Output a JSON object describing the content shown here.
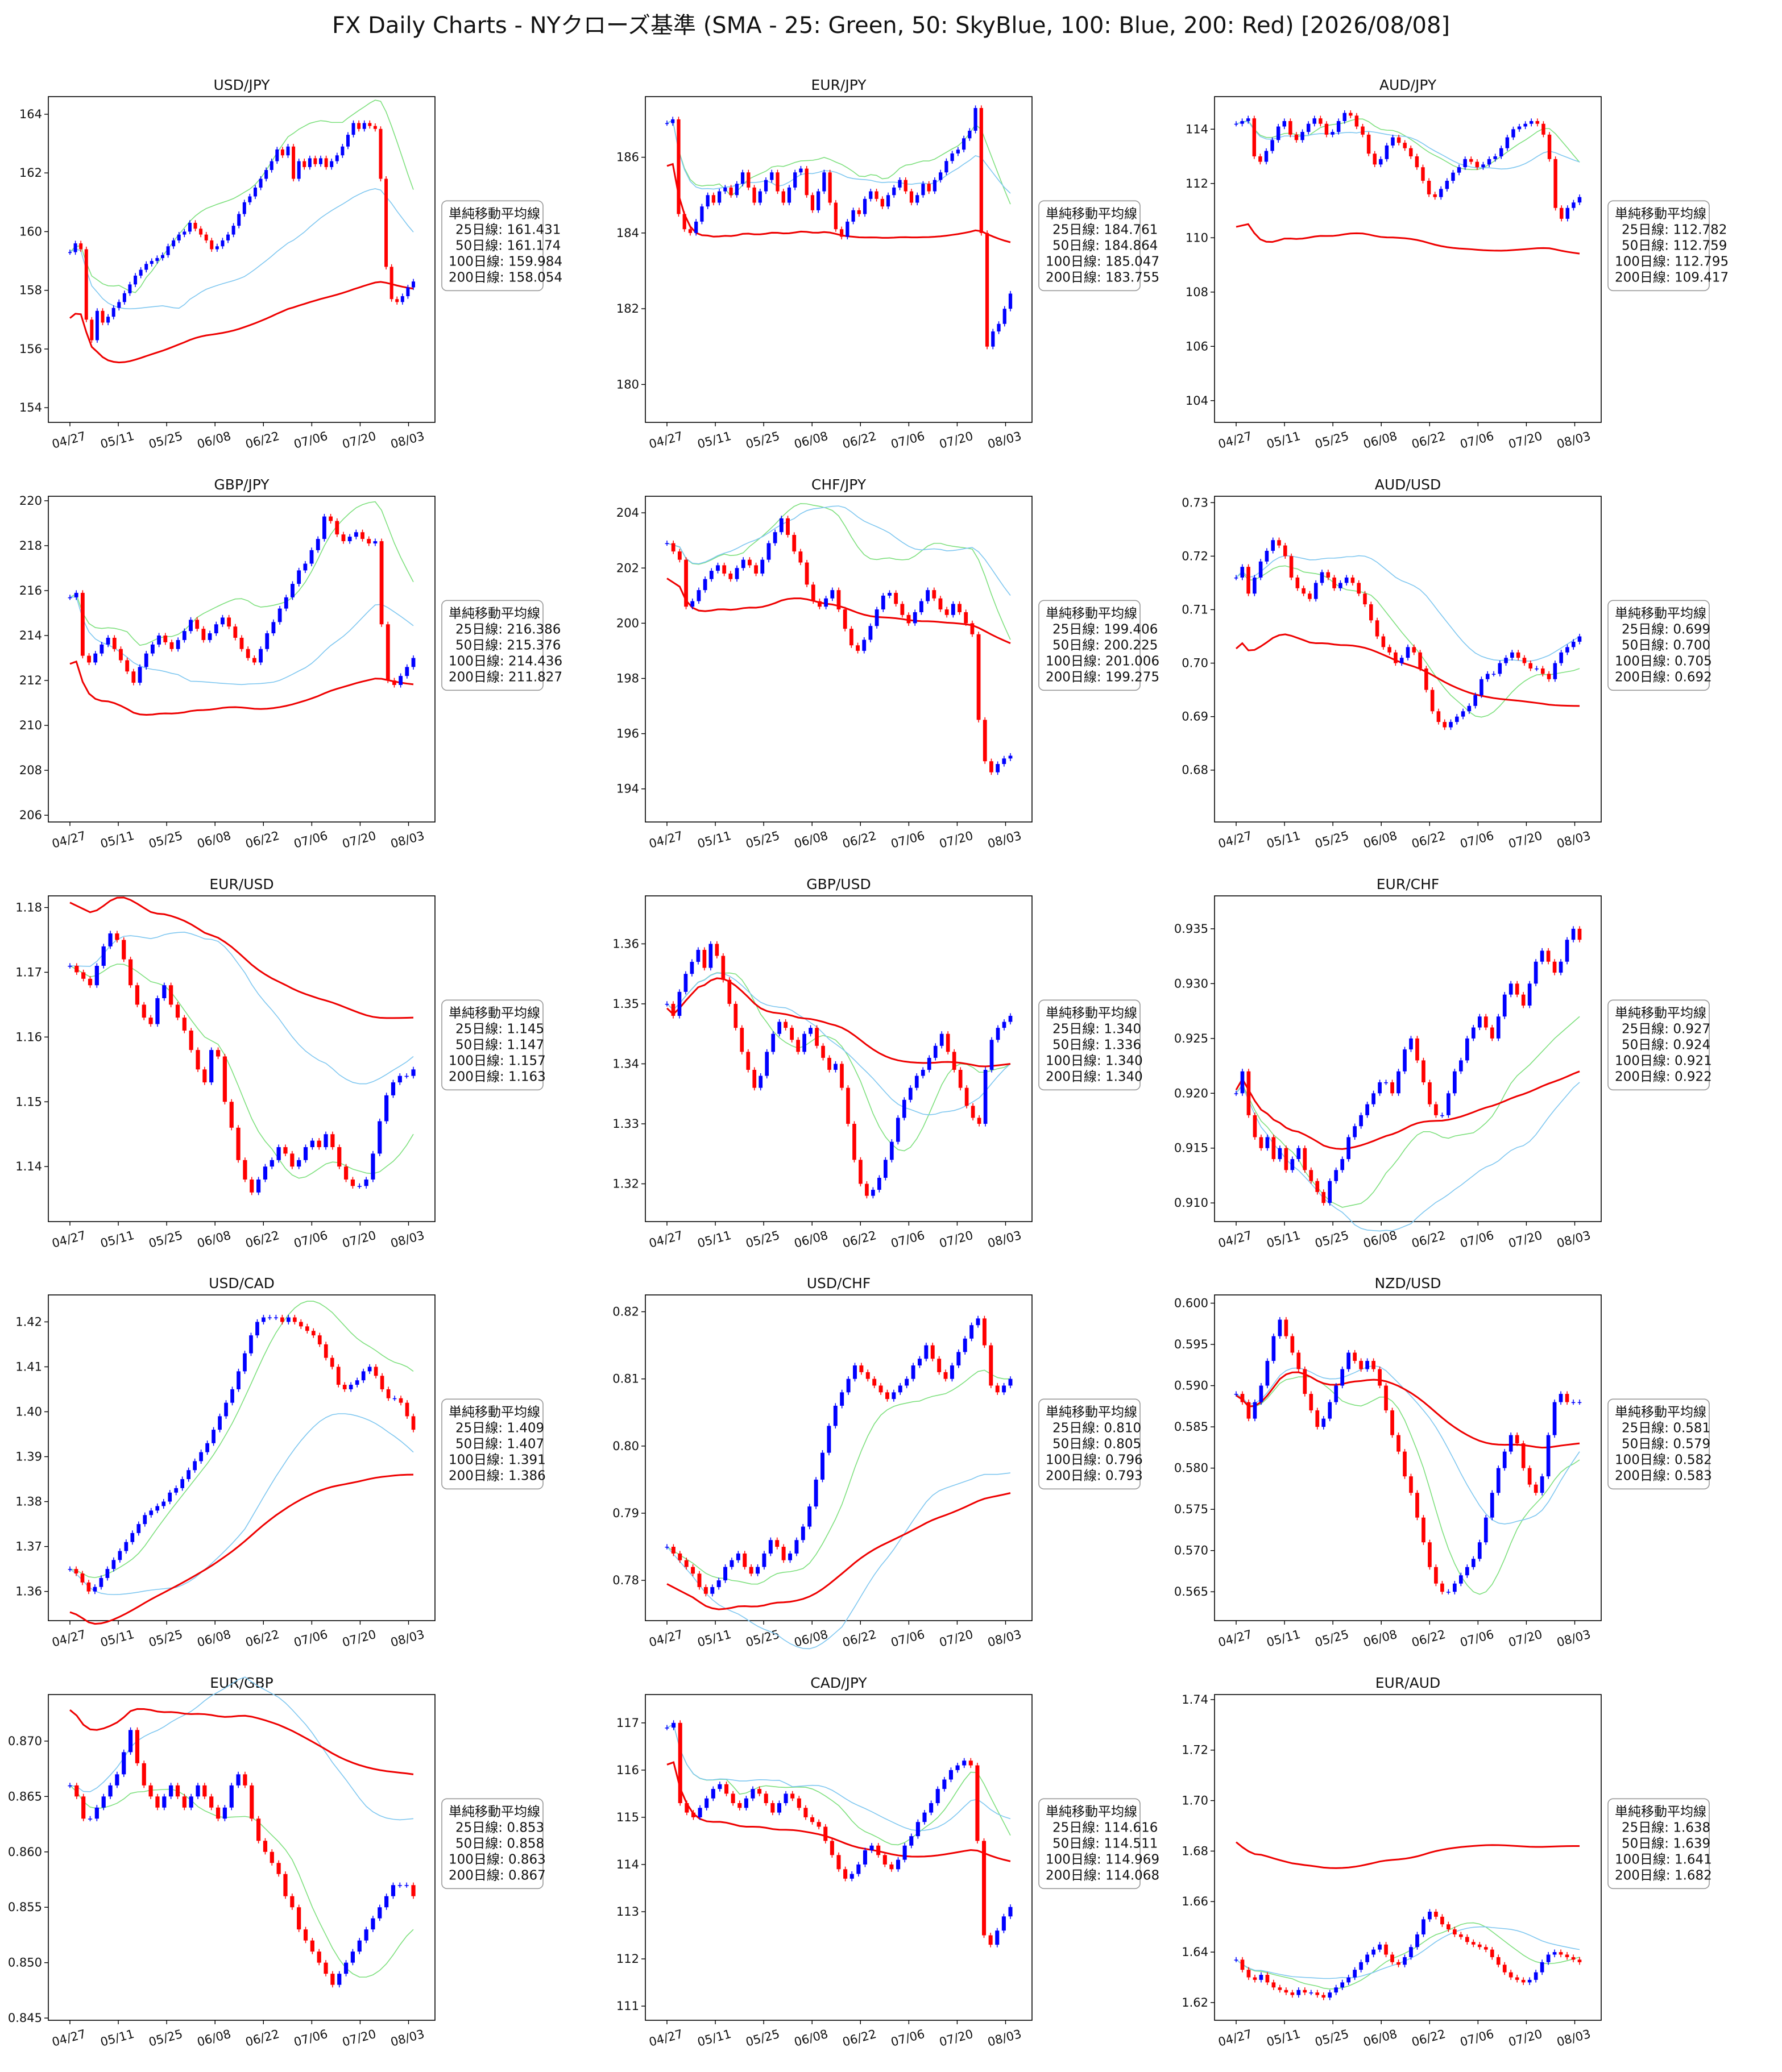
{
  "title": "FX Daily Charts - NYクローズ基準 (SMA - 25: Green, 50: SkyBlue, 100: Blue, 200: Red) [2026/08/08]",
  "colors": {
    "up_candle": "#0000ff",
    "down_candle": "#ff0000",
    "sma25": "#7ee07e",
    "sma50": "#7fc7f0",
    "sma100": "#0000ee",
    "sma200": "#ee0000",
    "axis": "#000000",
    "legend_border": "#999999"
  },
  "legend_heading": "単純移動平均線",
  "x_ticks": [
    "04/27",
    "05/11",
    "05/25",
    "06/08",
    "06/22",
    "07/06",
    "07/20",
    "08/03"
  ],
  "chart_data": [
    {
      "type": "candlestick",
      "title": "USD/JPY",
      "ylim": [
        153.5,
        164.6
      ],
      "yticks": [
        "154",
        "156",
        "158",
        "160",
        "162",
        "164"
      ],
      "sma_labels": [
        "25日線: 161.431",
        "50日線: 161.174",
        "100日線: 159.984",
        "200日線: 158.054"
      ],
      "closes": [
        159.3,
        159.6,
        159.4,
        157.0,
        156.3,
        157.3,
        156.9,
        157.1,
        157.4,
        157.6,
        157.9,
        158.2,
        158.5,
        158.7,
        158.9,
        159.0,
        159.1,
        159.2,
        159.5,
        159.7,
        159.9,
        160.0,
        160.3,
        160.1,
        159.9,
        159.7,
        159.4,
        159.5,
        159.7,
        159.9,
        160.2,
        160.6,
        161.0,
        161.2,
        161.5,
        161.8,
        162.1,
        162.4,
        162.8,
        162.6,
        162.9,
        161.8,
        162.4,
        162.2,
        162.5,
        162.3,
        162.5,
        162.2,
        162.4,
        162.6,
        162.9,
        163.3,
        163.7,
        163.5,
        163.7,
        163.6,
        163.5,
        161.8,
        158.8,
        157.7,
        157.6,
        157.8,
        158.1,
        158.3
      ]
    },
    {
      "type": "candlestick",
      "title": "EUR/JPY",
      "ylim": [
        179.0,
        187.6
      ],
      "yticks": [
        "180",
        "182",
        "184",
        "186"
      ],
      "sma_labels": [
        "25日線: 184.761",
        "50日線: 184.864",
        "100日線: 185.047",
        "200日線: 183.755"
      ],
      "closes": [
        186.9,
        187.0,
        184.5,
        184.1,
        184.0,
        184.3,
        184.7,
        185.0,
        184.8,
        185.1,
        185.2,
        185.0,
        185.3,
        185.6,
        185.2,
        184.8,
        185.1,
        185.4,
        185.6,
        185.1,
        184.8,
        185.2,
        185.6,
        185.7,
        185.0,
        184.6,
        185.1,
        185.6,
        184.8,
        184.1,
        183.9,
        184.3,
        184.6,
        184.5,
        184.9,
        185.1,
        184.9,
        184.7,
        185.0,
        185.2,
        185.4,
        185.1,
        184.8,
        185.0,
        185.3,
        185.1,
        185.4,
        185.6,
        185.9,
        186.1,
        186.2,
        186.5,
        186.7,
        187.3,
        184.0,
        181.0,
        181.4,
        181.6,
        182.0,
        182.4
      ]
    },
    {
      "type": "candlestick",
      "title": "AUD/JPY",
      "ylim": [
        103.2,
        115.2
      ],
      "yticks": [
        "104",
        "106",
        "108",
        "110",
        "112",
        "114"
      ],
      "sma_labels": [
        "25日線: 112.782",
        "50日線: 112.759",
        "100日線: 112.795",
        "200日線: 109.417"
      ],
      "closes": [
        114.2,
        114.3,
        114.4,
        113.0,
        112.8,
        113.2,
        113.6,
        114.1,
        114.3,
        113.8,
        113.6,
        113.9,
        114.2,
        114.4,
        114.2,
        113.8,
        113.9,
        114.3,
        114.6,
        114.5,
        114.1,
        113.8,
        113.1,
        112.7,
        112.9,
        113.4,
        113.7,
        113.5,
        113.3,
        113.0,
        112.6,
        112.1,
        111.6,
        111.5,
        111.8,
        112.1,
        112.4,
        112.6,
        112.9,
        112.8,
        112.6,
        112.7,
        112.9,
        113.0,
        113.3,
        113.7,
        114.0,
        114.1,
        114.2,
        114.3,
        114.2,
        113.8,
        112.9,
        111.1,
        110.7,
        111.1,
        111.3,
        111.5
      ]
    },
    {
      "type": "candlestick",
      "title": "GBP/JPY",
      "ylim": [
        205.7,
        220.2
      ],
      "yticks": [
        "206",
        "208",
        "210",
        "212",
        "214",
        "216",
        "218",
        "220"
      ],
      "sma_labels": [
        "25日線: 216.386",
        "50日線: 215.376",
        "100日線: 214.436",
        "200日線: 211.827"
      ],
      "closes": [
        215.7,
        215.9,
        213.1,
        212.8,
        213.2,
        213.6,
        213.9,
        213.4,
        212.9,
        212.4,
        211.9,
        212.6,
        213.2,
        213.6,
        214.0,
        213.7,
        213.4,
        213.8,
        214.2,
        214.7,
        214.3,
        213.8,
        214.1,
        214.5,
        214.8,
        214.4,
        213.9,
        213.4,
        213.0,
        212.8,
        213.4,
        214.1,
        214.6,
        215.2,
        215.7,
        216.3,
        216.9,
        217.2,
        217.8,
        218.3,
        219.3,
        219.1,
        218.5,
        218.2,
        218.4,
        218.6,
        218.3,
        218.1,
        218.2,
        214.5,
        212.0,
        211.8,
        212.2,
        212.6,
        213.0
      ]
    },
    {
      "type": "candlestick",
      "title": "CHF/JPY",
      "ylim": [
        192.8,
        204.6
      ],
      "yticks": [
        "194",
        "196",
        "198",
        "200",
        "202",
        "204"
      ],
      "sma_labels": [
        "25日線: 199.406",
        "50日線: 200.225",
        "100日線: 201.006",
        "200日線: 199.275"
      ],
      "closes": [
        202.9,
        202.6,
        202.3,
        200.6,
        200.8,
        201.2,
        201.6,
        201.9,
        202.1,
        201.8,
        201.6,
        202.0,
        202.3,
        202.1,
        201.8,
        202.3,
        202.9,
        203.3,
        203.8,
        203.2,
        202.6,
        202.2,
        201.4,
        200.8,
        200.6,
        200.9,
        201.2,
        200.5,
        199.8,
        199.2,
        199.0,
        199.4,
        199.9,
        200.5,
        201.0,
        201.1,
        200.7,
        200.3,
        200.0,
        200.4,
        200.8,
        201.2,
        200.9,
        200.5,
        200.3,
        200.7,
        200.4,
        200.0,
        199.6,
        196.5,
        195.0,
        194.6,
        194.9,
        195.1,
        195.2
      ]
    },
    {
      "type": "candlestick",
      "title": "AUD/USD",
      "ylim": [
        0.6703,
        0.7312
      ],
      "yticks": [
        "0.68",
        "0.69",
        "0.70",
        "0.71",
        "0.72",
        "0.73"
      ],
      "sma_labels": [
        "25日線: 0.699",
        "50日線: 0.700",
        "100日線: 0.705",
        "200日線: 0.692"
      ],
      "closes": [
        0.716,
        0.718,
        0.713,
        0.716,
        0.719,
        0.721,
        0.723,
        0.722,
        0.72,
        0.716,
        0.714,
        0.713,
        0.712,
        0.715,
        0.717,
        0.716,
        0.714,
        0.715,
        0.716,
        0.715,
        0.713,
        0.711,
        0.708,
        0.705,
        0.703,
        0.702,
        0.7,
        0.701,
        0.703,
        0.702,
        0.699,
        0.695,
        0.691,
        0.689,
        0.688,
        0.689,
        0.69,
        0.691,
        0.692,
        0.694,
        0.697,
        0.698,
        0.698,
        0.7,
        0.701,
        0.702,
        0.701,
        0.7,
        0.699,
        0.699,
        0.698,
        0.697,
        0.7,
        0.702,
        0.703,
        0.704,
        0.705
      ]
    },
    {
      "type": "candlestick",
      "title": "EUR/USD",
      "ylim": [
        1.1315,
        1.1818
      ],
      "yticks": [
        "1.14",
        "1.15",
        "1.16",
        "1.17",
        "1.18"
      ],
      "sma_labels": [
        "25日線: 1.145",
        "50日線: 1.147",
        "100日線: 1.157",
        "200日線: 1.163"
      ],
      "closes": [
        1.171,
        1.17,
        1.169,
        1.168,
        1.171,
        1.174,
        1.176,
        1.175,
        1.172,
        1.168,
        1.165,
        1.163,
        1.162,
        1.166,
        1.168,
        1.165,
        1.163,
        1.161,
        1.158,
        1.155,
        1.153,
        1.158,
        1.157,
        1.15,
        1.146,
        1.141,
        1.138,
        1.136,
        1.138,
        1.14,
        1.141,
        1.143,
        1.142,
        1.14,
        1.141,
        1.143,
        1.144,
        1.143,
        1.145,
        1.143,
        1.14,
        1.138,
        1.137,
        1.137,
        1.138,
        1.142,
        1.147,
        1.151,
        1.153,
        1.154,
        1.154,
        1.155
      ]
    },
    {
      "type": "candlestick",
      "title": "GBP/USD",
      "ylim": [
        1.3137,
        1.368
      ],
      "yticks": [
        "1.32",
        "1.33",
        "1.34",
        "1.35",
        "1.36"
      ],
      "sma_labels": [
        "25日線: 1.340",
        "50日線: 1.336",
        "100日線: 1.340",
        "200日線: 1.340"
      ],
      "closes": [
        1.35,
        1.348,
        1.352,
        1.355,
        1.357,
        1.359,
        1.356,
        1.36,
        1.358,
        1.354,
        1.35,
        1.346,
        1.342,
        1.339,
        1.336,
        1.338,
        1.342,
        1.345,
        1.347,
        1.346,
        1.344,
        1.342,
        1.345,
        1.346,
        1.343,
        1.341,
        1.339,
        1.34,
        1.336,
        1.33,
        1.324,
        1.32,
        1.318,
        1.319,
        1.321,
        1.324,
        1.327,
        1.331,
        1.334,
        1.336,
        1.338,
        1.339,
        1.341,
        1.343,
        1.345,
        1.342,
        1.339,
        1.336,
        1.333,
        1.331,
        1.33,
        1.339,
        1.344,
        1.346,
        1.347,
        1.348
      ]
    },
    {
      "type": "candlestick",
      "title": "EUR/CHF",
      "ylim": [
        0.9083,
        0.938
      ],
      "yticks": [
        "0.910",
        "0.915",
        "0.920",
        "0.925",
        "0.930",
        "0.935"
      ],
      "sma_labels": [
        "25日線: 0.927",
        "50日線: 0.924",
        "100日線: 0.921",
        "200日線: 0.922"
      ],
      "closes": [
        0.92,
        0.922,
        0.918,
        0.916,
        0.915,
        0.916,
        0.914,
        0.915,
        0.913,
        0.914,
        0.915,
        0.913,
        0.912,
        0.911,
        0.91,
        0.912,
        0.913,
        0.914,
        0.916,
        0.917,
        0.918,
        0.919,
        0.92,
        0.921,
        0.921,
        0.92,
        0.922,
        0.924,
        0.925,
        0.923,
        0.921,
        0.919,
        0.918,
        0.918,
        0.92,
        0.922,
        0.923,
        0.925,
        0.926,
        0.927,
        0.926,
        0.925,
        0.927,
        0.929,
        0.93,
        0.929,
        0.928,
        0.93,
        0.932,
        0.933,
        0.932,
        0.931,
        0.932,
        0.934,
        0.935,
        0.934
      ]
    },
    {
      "type": "candlestick",
      "title": "USD/CAD",
      "ylim": [
        1.3535,
        1.426
      ],
      "yticks": [
        "1.36",
        "1.37",
        "1.38",
        "1.39",
        "1.40",
        "1.41",
        "1.42"
      ],
      "sma_labels": [
        "25日線: 1.409",
        "50日線: 1.407",
        "100日線: 1.391",
        "200日線: 1.386"
      ],
      "closes": [
        1.365,
        1.364,
        1.362,
        1.36,
        1.361,
        1.363,
        1.365,
        1.367,
        1.369,
        1.371,
        1.373,
        1.375,
        1.377,
        1.378,
        1.379,
        1.38,
        1.382,
        1.383,
        1.385,
        1.387,
        1.389,
        1.391,
        1.393,
        1.396,
        1.399,
        1.402,
        1.405,
        1.409,
        1.413,
        1.417,
        1.42,
        1.421,
        1.421,
        1.421,
        1.42,
        1.421,
        1.42,
        1.419,
        1.418,
        1.417,
        1.415,
        1.412,
        1.41,
        1.406,
        1.405,
        1.406,
        1.407,
        1.409,
        1.41,
        1.408,
        1.405,
        1.403,
        1.403,
        1.402,
        1.399,
        1.396
      ]
    },
    {
      "type": "candlestick",
      "title": "USD/CHF",
      "ylim": [
        0.774,
        0.8225
      ],
      "yticks": [
        "0.78",
        "0.79",
        "0.80",
        "0.81",
        "0.82"
      ],
      "sma_labels": [
        "25日線: 0.810",
        "50日線: 0.805",
        "100日線: 0.796",
        "200日線: 0.793"
      ],
      "closes": [
        0.785,
        0.784,
        0.783,
        0.782,
        0.781,
        0.779,
        0.778,
        0.779,
        0.78,
        0.782,
        0.783,
        0.784,
        0.782,
        0.781,
        0.782,
        0.784,
        0.786,
        0.785,
        0.783,
        0.784,
        0.786,
        0.788,
        0.791,
        0.795,
        0.799,
        0.803,
        0.806,
        0.808,
        0.81,
        0.812,
        0.811,
        0.81,
        0.809,
        0.808,
        0.807,
        0.808,
        0.809,
        0.81,
        0.812,
        0.813,
        0.815,
        0.813,
        0.811,
        0.81,
        0.812,
        0.814,
        0.816,
        0.818,
        0.819,
        0.815,
        0.809,
        0.808,
        0.809,
        0.81
      ]
    },
    {
      "type": "candlestick",
      "title": "NZD/USD",
      "ylim": [
        0.5615,
        0.601
      ],
      "yticks": [
        "0.565",
        "0.570",
        "0.575",
        "0.580",
        "0.585",
        "0.590",
        "0.595",
        "0.600"
      ],
      "sma_labels": [
        "25日線: 0.581",
        "50日線: 0.579",
        "100日線: 0.582",
        "200日線: 0.583"
      ],
      "closes": [
        0.589,
        0.588,
        0.586,
        0.588,
        0.59,
        0.593,
        0.596,
        0.598,
        0.596,
        0.594,
        0.592,
        0.589,
        0.587,
        0.585,
        0.586,
        0.588,
        0.59,
        0.592,
        0.594,
        0.593,
        0.592,
        0.593,
        0.592,
        0.59,
        0.587,
        0.584,
        0.582,
        0.579,
        0.577,
        0.574,
        0.571,
        0.568,
        0.566,
        0.565,
        0.565,
        0.566,
        0.567,
        0.568,
        0.569,
        0.571,
        0.574,
        0.577,
        0.58,
        0.582,
        0.584,
        0.583,
        0.58,
        0.578,
        0.577,
        0.579,
        0.584,
        0.588,
        0.589,
        0.588,
        0.588,
        0.588
      ]
    },
    {
      "type": "candlestick",
      "title": "EUR/GBP",
      "ylim": [
        0.8448,
        0.8742
      ],
      "yticks": [
        "0.845",
        "0.850",
        "0.855",
        "0.860",
        "0.865",
        "0.870"
      ],
      "sma_labels": [
        "25日線: 0.853",
        "50日線: 0.858",
        "100日線: 0.863",
        "200日線: 0.867"
      ],
      "closes": [
        0.866,
        0.865,
        0.863,
        0.863,
        0.864,
        0.865,
        0.866,
        0.867,
        0.869,
        0.871,
        0.868,
        0.866,
        0.865,
        0.864,
        0.865,
        0.866,
        0.865,
        0.864,
        0.865,
        0.866,
        0.865,
        0.864,
        0.863,
        0.864,
        0.866,
        0.867,
        0.866,
        0.863,
        0.861,
        0.86,
        0.859,
        0.858,
        0.856,
        0.855,
        0.853,
        0.852,
        0.851,
        0.85,
        0.849,
        0.848,
        0.849,
        0.85,
        0.851,
        0.852,
        0.853,
        0.854,
        0.855,
        0.856,
        0.857,
        0.857,
        0.857,
        0.856
      ]
    },
    {
      "type": "candlestick",
      "title": "CAD/JPY",
      "ylim": [
        110.7,
        117.6
      ],
      "yticks": [
        "111",
        "112",
        "113",
        "114",
        "115",
        "116",
        "117"
      ],
      "sma_labels": [
        "25日線: 114.616",
        "50日線: 114.511",
        "100日線: 114.969",
        "200日線: 114.068"
      ],
      "closes": [
        116.9,
        117.0,
        115.3,
        115.1,
        115.0,
        115.2,
        115.4,
        115.6,
        115.7,
        115.5,
        115.3,
        115.2,
        115.4,
        115.6,
        115.5,
        115.3,
        115.1,
        115.3,
        115.5,
        115.4,
        115.2,
        115.0,
        114.9,
        114.8,
        114.5,
        114.2,
        113.9,
        113.7,
        113.8,
        114.0,
        114.3,
        114.4,
        114.2,
        114.0,
        113.9,
        114.1,
        114.4,
        114.6,
        114.9,
        115.1,
        115.3,
        115.6,
        115.8,
        116.0,
        116.1,
        116.2,
        116.1,
        114.5,
        112.5,
        112.3,
        112.6,
        112.9,
        113.1
      ]
    },
    {
      "type": "candlestick",
      "title": "EUR/AUD",
      "ylim": [
        1.613,
        1.742
      ],
      "yticks": [
        "1.62",
        "1.64",
        "1.66",
        "1.68",
        "1.70",
        "1.72",
        "1.74"
      ],
      "sma_labels": [
        "25日線: 1.638",
        "50日線: 1.639",
        "100日線: 1.641",
        "200日線: 1.682"
      ],
      "closes": [
        1.637,
        1.633,
        1.63,
        1.629,
        1.631,
        1.628,
        1.626,
        1.625,
        1.624,
        1.623,
        1.625,
        1.624,
        1.624,
        1.623,
        1.622,
        1.624,
        1.626,
        1.628,
        1.63,
        1.633,
        1.636,
        1.639,
        1.641,
        1.643,
        1.639,
        1.636,
        1.635,
        1.638,
        1.642,
        1.647,
        1.653,
        1.656,
        1.654,
        1.651,
        1.649,
        1.647,
        1.646,
        1.644,
        1.643,
        1.642,
        1.641,
        1.638,
        1.635,
        1.632,
        1.63,
        1.629,
        1.628,
        1.629,
        1.632,
        1.636,
        1.639,
        1.64,
        1.639,
        1.638,
        1.637,
        1.636
      ]
    }
  ]
}
